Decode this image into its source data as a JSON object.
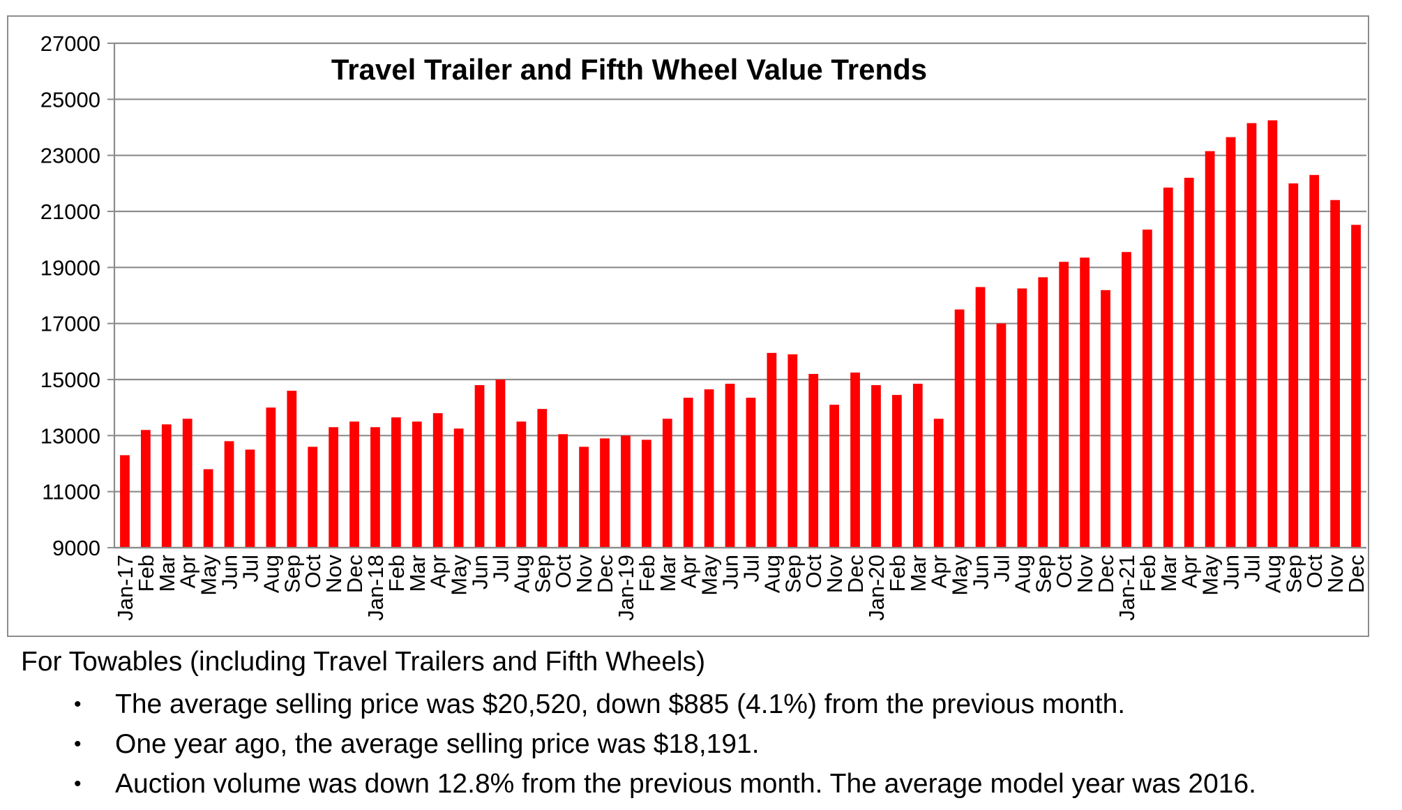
{
  "chart_data": {
    "type": "bar",
    "title": "Travel Trailer and Fifth Wheel Value Trends",
    "xlabel": "",
    "ylabel": "",
    "ylim": [
      9000,
      27000
    ],
    "yticks": [
      9000,
      11000,
      13000,
      15000,
      17000,
      19000,
      21000,
      23000,
      25000,
      27000
    ],
    "grid": "horizontal",
    "bar_color": "#ff0000",
    "categories": [
      "Jan-17",
      "Feb",
      "Mar",
      "Apr",
      "May",
      "Jun",
      "Jul",
      "Aug",
      "Sep",
      "Oct",
      "Nov",
      "Dec",
      "Jan-18",
      "Feb",
      "Mar",
      "Apr",
      "May",
      "Jun",
      "Jul",
      "Aug",
      "Sep",
      "Oct",
      "Nov",
      "Dec",
      "Jan-19",
      "Feb",
      "Mar",
      "Apr",
      "May",
      "Jun",
      "Jul",
      "Aug",
      "Sep",
      "Oct",
      "Nov",
      "Dec",
      "Jan-20",
      "Feb",
      "Mar",
      "Apr",
      "May",
      "Jun",
      "Jul",
      "Aug",
      "Sep",
      "Oct",
      "Nov",
      "Dec",
      "Jan-21",
      "Feb",
      "Mar",
      "Apr",
      "May",
      "Jun",
      "Jul",
      "Aug",
      "Sep",
      "Oct",
      "Nov",
      "Dec"
    ],
    "values": [
      12300,
      13200,
      13400,
      13600,
      11800,
      12800,
      12500,
      14000,
      14600,
      12600,
      13300,
      13500,
      13300,
      13650,
      13500,
      13800,
      13250,
      14800,
      15000,
      13500,
      13950,
      13050,
      12600,
      12900,
      13000,
      12850,
      13600,
      14350,
      14650,
      14850,
      14350,
      15950,
      15900,
      15200,
      14100,
      15250,
      14800,
      14450,
      14850,
      13600,
      17500,
      18300,
      17000,
      18250,
      18650,
      19200,
      19350,
      18191,
      19550,
      20350,
      21850,
      22200,
      23150,
      23650,
      24150,
      24250,
      22000,
      22300,
      21405,
      20520
    ]
  },
  "notes": {
    "heading": "For Towables (including Travel Trailers and Fifth Wheels)",
    "bullet_char": "•",
    "items": [
      "The average selling price was $20,520, down $885 (4.1%) from the previous month.",
      "One year ago, the average selling price was $18,191.",
      "Auction volume was down 12.8% from the previous month.  The average model year was 2016."
    ]
  }
}
